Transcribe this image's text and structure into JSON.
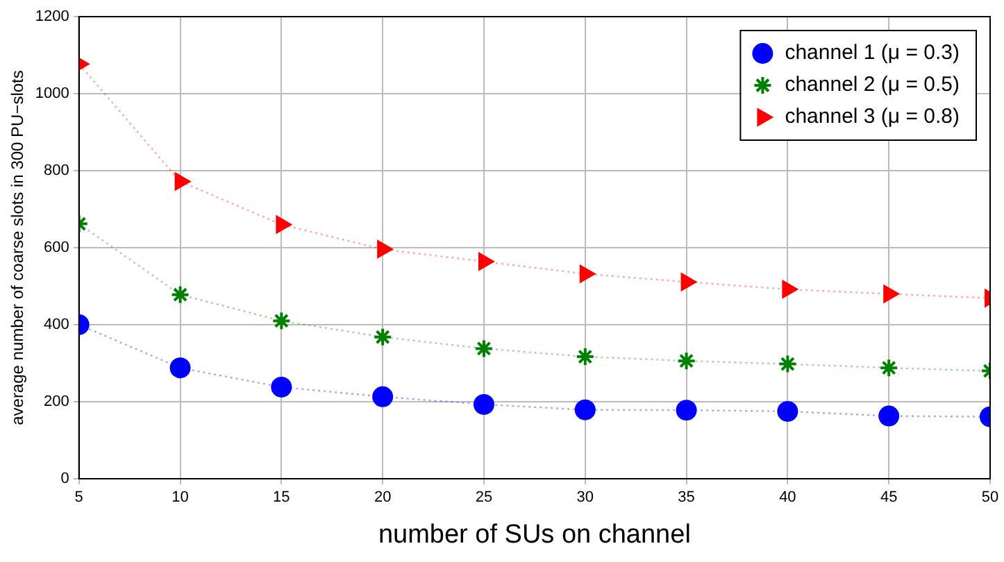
{
  "chart_data": {
    "type": "line",
    "xlabel": "number of SUs on channel",
    "ylabel": "average number of coarse slots in 300 PU−slots",
    "x": [
      5,
      10,
      15,
      20,
      25,
      30,
      35,
      40,
      45,
      50
    ],
    "series": [
      {
        "name": "channel 1 (μ = 0.3)",
        "color": "#0000ff",
        "marker": "circle",
        "values": [
          400,
          288,
          238,
          213,
          193,
          179,
          178,
          175,
          163,
          161
        ]
      },
      {
        "name": "channel 2 (μ = 0.5)",
        "color": "#008000",
        "marker": "cross",
        "values": [
          662,
          478,
          410,
          368,
          338,
          317,
          306,
          298,
          288,
          280
        ]
      },
      {
        "name": "channel 3 (μ = 0.8)",
        "color": "#ff0000",
        "marker": "triangle",
        "values": [
          1077,
          772,
          660,
          596,
          564,
          532,
          511,
          492,
          480,
          469
        ]
      }
    ],
    "xlim": [
      5,
      50
    ],
    "xticks": [
      5,
      10,
      15,
      20,
      25,
      30,
      35,
      40,
      45,
      50
    ],
    "ylim": [
      0,
      1200
    ],
    "yticks": [
      0,
      200,
      400,
      600,
      800,
      1000,
      1200
    ],
    "grid": true,
    "legend": "top right",
    "line_style": "dotted"
  }
}
